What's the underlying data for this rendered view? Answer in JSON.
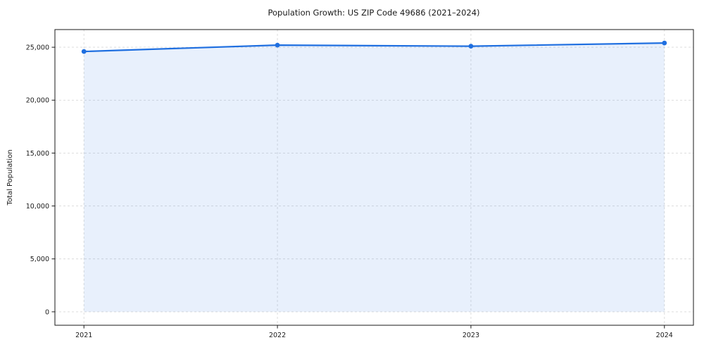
{
  "chart_data": {
    "type": "line",
    "title": "Population Growth: US ZIP Code 49686 (2021–2024)",
    "xlabel": "",
    "ylabel": "Total Population",
    "series_name": "Total Population",
    "x": [
      2021,
      2022,
      2023,
      2024
    ],
    "values": [
      24600,
      25200,
      25100,
      25400
    ],
    "x_tick_labels": [
      "2021",
      "2022",
      "2023",
      "2024"
    ],
    "y_ticks": [
      0,
      5000,
      10000,
      15000,
      20000,
      25000
    ],
    "y_tick_labels": [
      "0",
      "5,000",
      "10,000",
      "15,000",
      "20,000",
      "25,000"
    ],
    "xlim": [
      2020.85,
      2024.15
    ],
    "ylim": [
      -1270,
      26670
    ],
    "area_baseline": 0,
    "grid": true,
    "grid_style": "dashed",
    "legend": "none",
    "marker": "circle",
    "area_fill": true,
    "colors": {
      "line": "#1f6fe0",
      "marker": "#1f6fe0",
      "area": "rgba(31,111,224,0.10)",
      "grid": "#d9d9d9",
      "spine": "#1a1a1a",
      "text": "#1a1a1a",
      "background": "#ffffff"
    }
  }
}
